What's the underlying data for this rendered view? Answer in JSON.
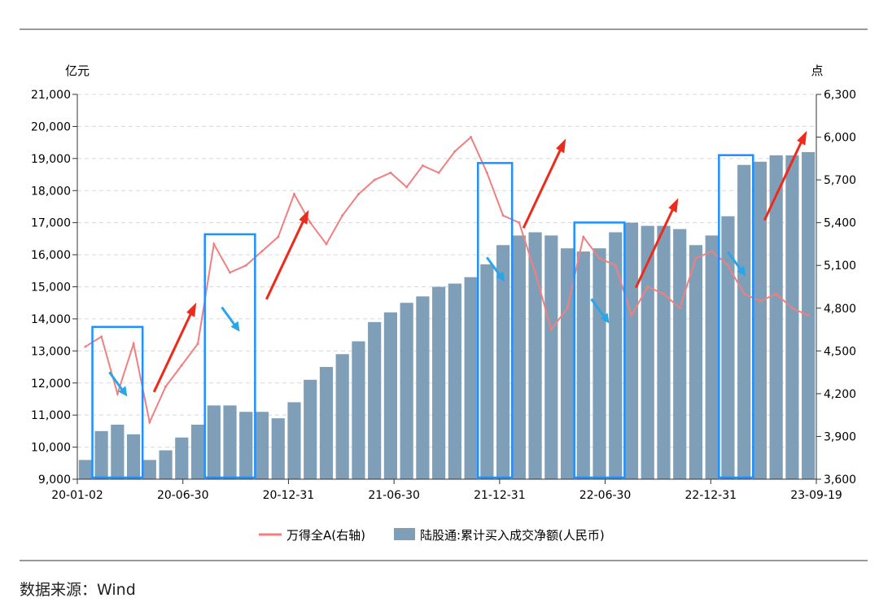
{
  "chart_data": {
    "type": "bar+line",
    "left_axis": {
      "unit": "亿元",
      "min": 9000,
      "max": 21000,
      "ticks": [
        "9,000",
        "10,000",
        "11,000",
        "12,000",
        "13,000",
        "14,000",
        "15,000",
        "16,000",
        "17,000",
        "18,000",
        "19,000",
        "20,000",
        "21,000"
      ]
    },
    "right_axis": {
      "unit": "点",
      "min": 3600,
      "max": 6300,
      "ticks": [
        "3,600",
        "3,900",
        "4,200",
        "4,500",
        "4,800",
        "5,100",
        "5,400",
        "5,700",
        "6,000",
        "6,300"
      ]
    },
    "x_ticks": [
      "20-01-02",
      "20-06-30",
      "20-12-31",
      "21-06-30",
      "21-12-31",
      "22-06-30",
      "22-12-31",
      "23-09-19"
    ],
    "bar_series": {
      "name": "陆股通:累计买入成交净额(人民币)",
      "color": "#7f9fb8",
      "x": [
        0,
        1,
        2,
        3,
        4,
        5,
        6,
        7,
        8,
        9,
        10,
        11,
        12,
        13,
        14,
        15,
        16,
        17,
        18,
        19,
        20,
        21,
        22,
        23,
        24,
        25,
        26,
        27,
        28,
        29,
        30,
        31,
        32,
        33,
        34,
        35,
        36,
        37,
        38,
        39,
        40,
        41,
        42,
        43,
        44,
        45
      ],
      "values": [
        9600,
        10500,
        10700,
        10400,
        9600,
        9900,
        10300,
        10700,
        11300,
        11300,
        11100,
        11100,
        10900,
        11400,
        12100,
        12500,
        12900,
        13300,
        13900,
        14200,
        14500,
        14700,
        15000,
        15100,
        15300,
        15700,
        16300,
        16600,
        16700,
        16600,
        16200,
        16100,
        16200,
        16700,
        17000,
        16900,
        16900,
        16800,
        16300,
        16600,
        17200,
        18800,
        18900,
        19100,
        19100,
        19200
      ]
    },
    "line_series": {
      "name": "万得全A(右轴)",
      "color": "#f08080",
      "x": [
        0,
        1,
        2,
        3,
        4,
        5,
        6,
        7,
        8,
        9,
        10,
        11,
        12,
        13,
        14,
        15,
        16,
        17,
        18,
        19,
        20,
        21,
        22,
        23,
        24,
        25,
        26,
        27,
        28,
        29,
        30,
        31,
        32,
        33,
        34,
        35,
        36,
        37,
        38,
        39,
        40,
        41,
        42,
        43,
        44,
        45
      ],
      "values": [
        4530,
        4600,
        4200,
        4550,
        4000,
        4250,
        4400,
        4550,
        5250,
        5050,
        5100,
        5200,
        5300,
        5600,
        5400,
        5250,
        5450,
        5600,
        5700,
        5750,
        5650,
        5800,
        5750,
        5900,
        6000,
        5750,
        5450,
        5400,
        5050,
        4650,
        4800,
        5300,
        5150,
        5100,
        4750,
        4950,
        4900,
        4800,
        5150,
        5200,
        5100,
        4900,
        4850,
        4900,
        4800,
        4750
      ]
    },
    "legend": [
      "万得全A(右轴)",
      "陆股通:累计买入成交净额(人民币)"
    ],
    "legend_position": "bottom",
    "annotations": {
      "blue_boxes_between_indices": [
        [
          1,
          3
        ],
        [
          8,
          10
        ],
        [
          25,
          26
        ],
        [
          31,
          33
        ],
        [
          40,
          41
        ]
      ],
      "red_up_arrows_after_boxes": 5,
      "blue_down_arrows_inside_boxes": 5
    }
  },
  "source": "数据来源：Wind",
  "colors": {
    "box": "#1e90ff",
    "red_arrow": "#ee2a1a",
    "blue_arrow": "#2aa6e8",
    "grid": "#d8d8d8",
    "rule": "#999999"
  }
}
